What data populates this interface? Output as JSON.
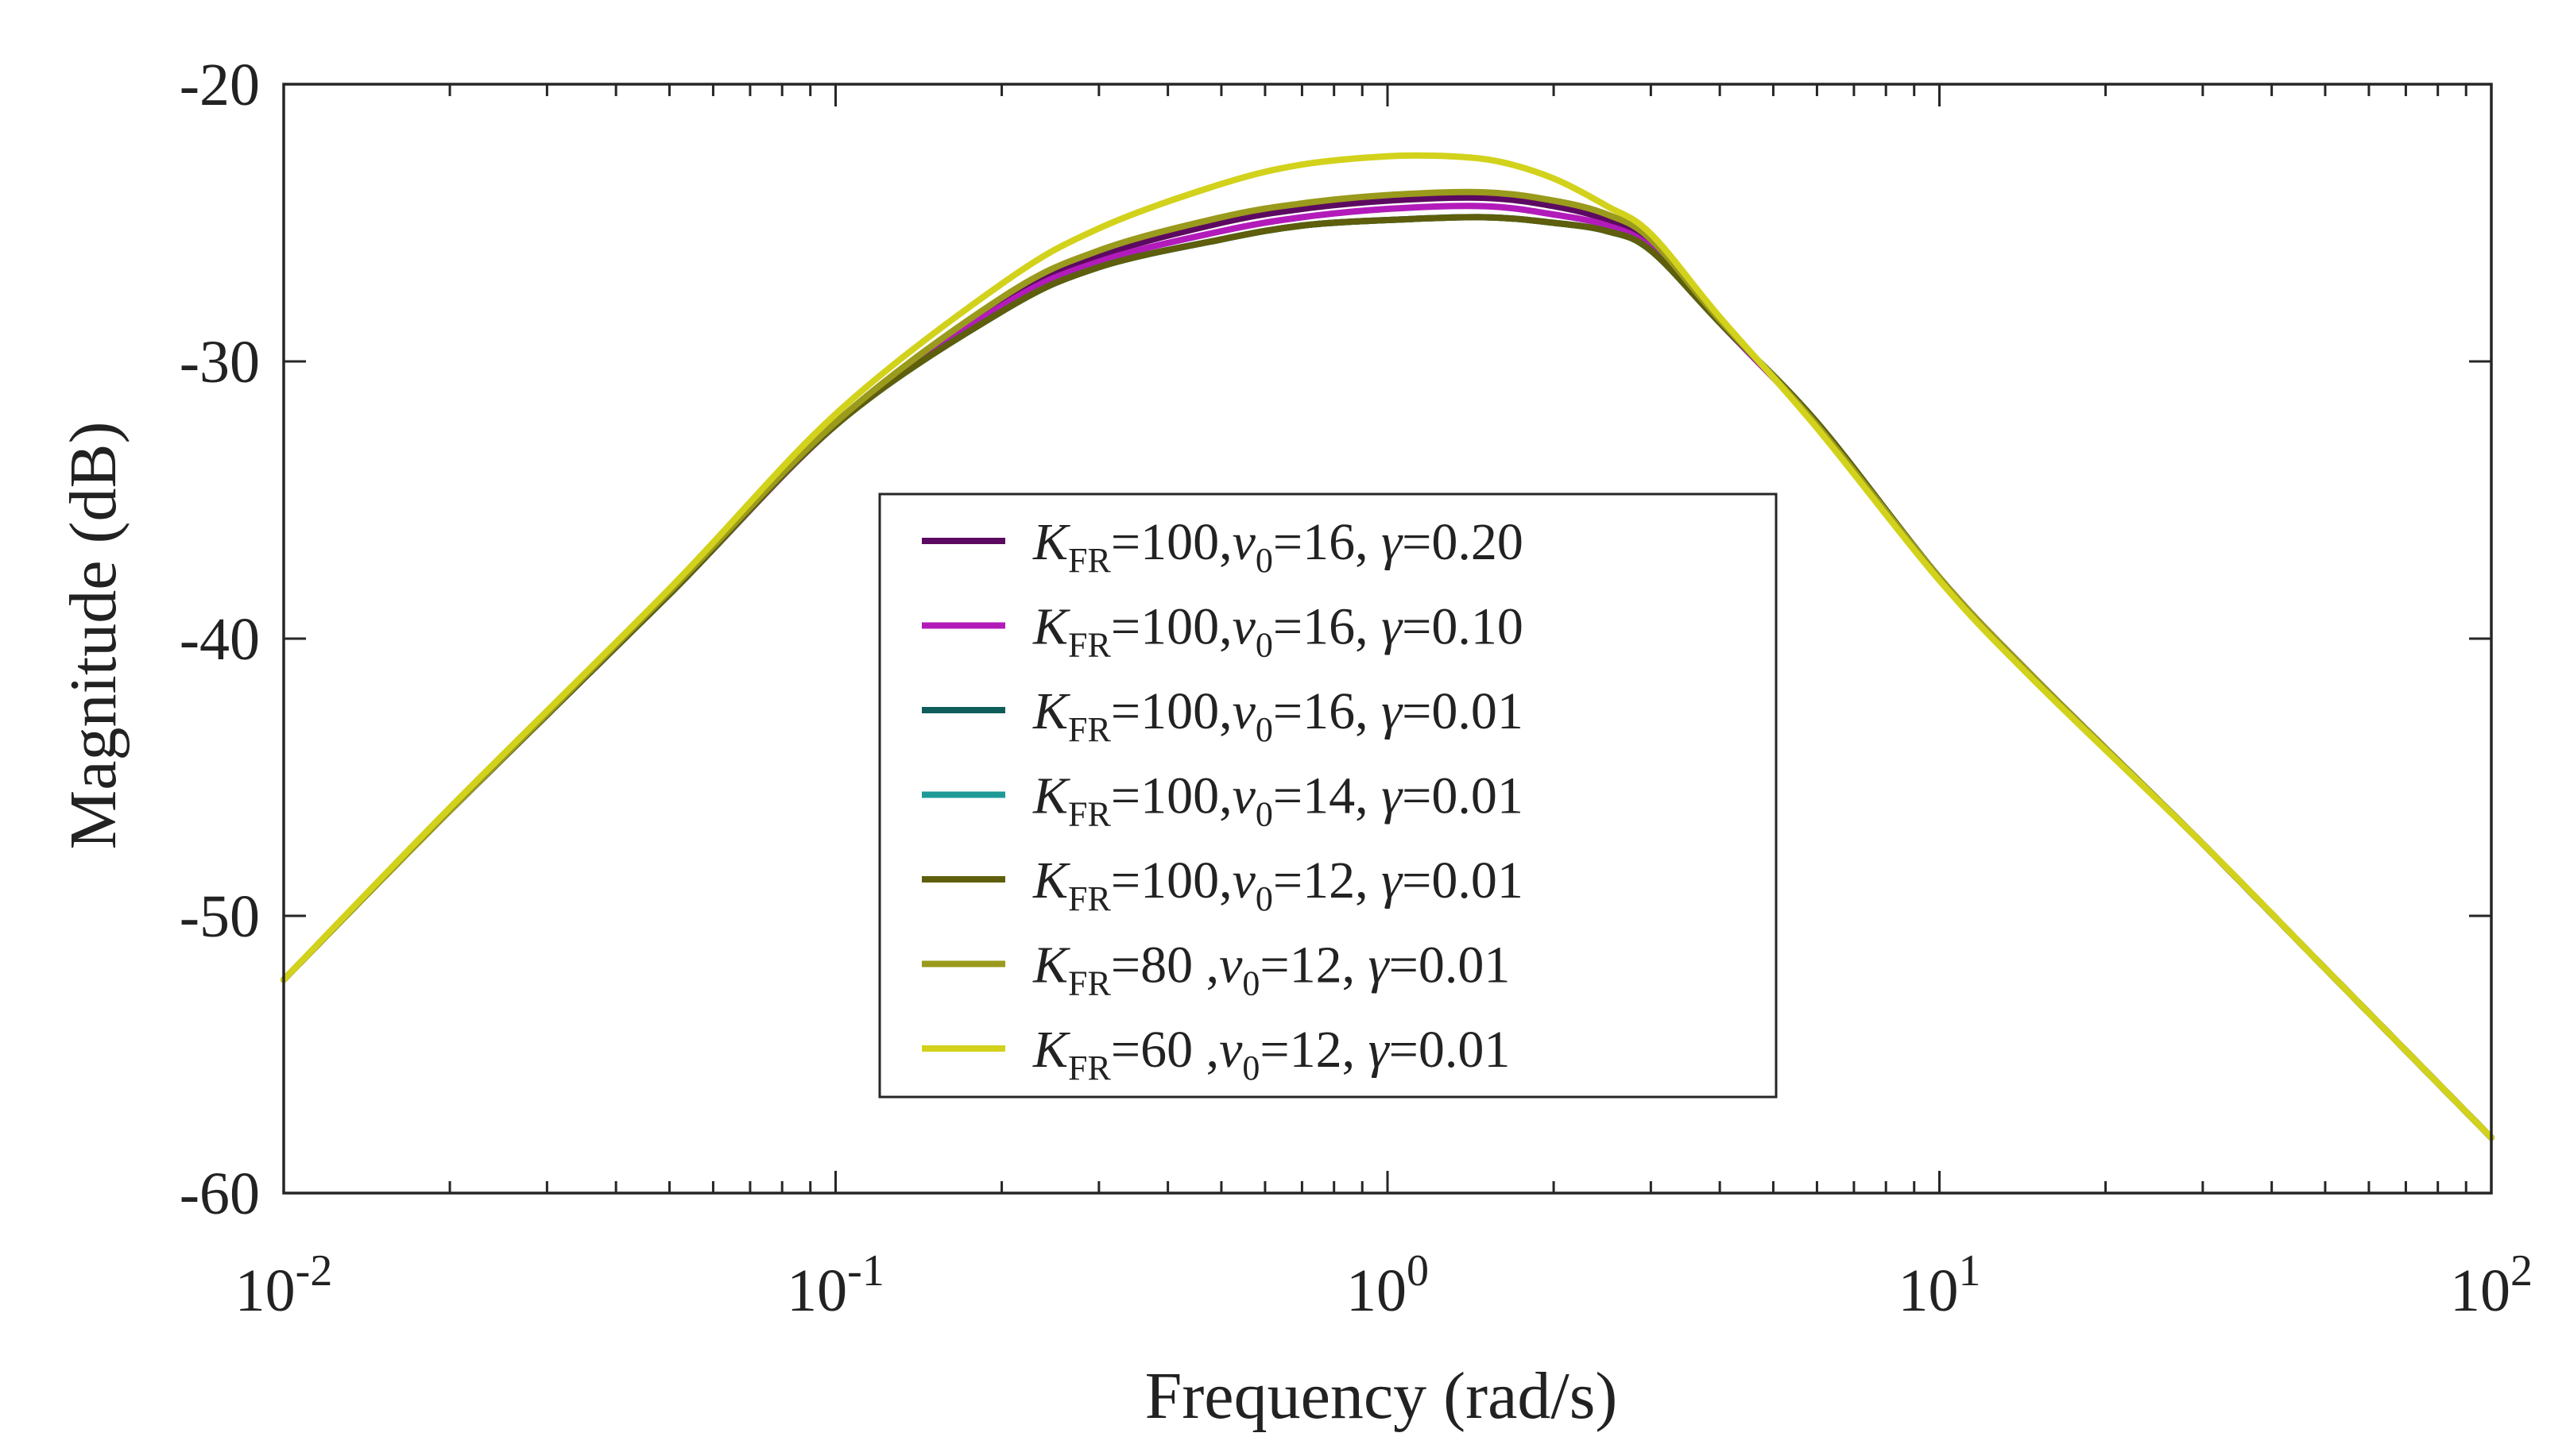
{
  "chart_data": {
    "type": "line",
    "title": "",
    "xlabel": "Frequency (rad/s)",
    "ylabel": "Magnitude (dB)",
    "xscale": "log",
    "xlim": [
      0.01,
      100
    ],
    "ylim": [
      -60,
      -20
    ],
    "yticks": [
      -20,
      -30,
      -40,
      -50,
      -60
    ],
    "ytick_labels": [
      "-20",
      "-30",
      "-40",
      "-50",
      "-60"
    ],
    "xticks": [
      0.01,
      0.1,
      1,
      10,
      100
    ],
    "xtick_labels": [
      {
        "base": "10",
        "exp": "-2"
      },
      {
        "base": "10",
        "exp": "-1"
      },
      {
        "base": "10",
        "exp": "0"
      },
      {
        "base": "10",
        "exp": "1"
      },
      {
        "base": "10",
        "exp": "2"
      }
    ],
    "grid": false,
    "legend_position": "center",
    "series": [
      {
        "name": "K_FR=100,v0=16, γ=0.20",
        "color": "#5c0a61",
        "legend": {
          "K": "K",
          "K_sub": "FR",
          "K_val": "=100,",
          "v": "v",
          "v_sub": "0",
          "v_val": "=16, ",
          "g": "γ",
          "g_val": "=0.20"
        },
        "points": [
          [
            0.01,
            -52.3
          ],
          [
            0.02,
            -46.2
          ],
          [
            0.05,
            -38.4
          ],
          [
            0.1,
            -32.3
          ],
          [
            0.2,
            -27.9
          ],
          [
            0.3,
            -26.2
          ],
          [
            0.5,
            -25.0
          ],
          [
            0.7,
            -24.5
          ],
          [
            1.0,
            -24.2
          ],
          [
            1.5,
            -24.1
          ],
          [
            2.0,
            -24.4
          ],
          [
            2.5,
            -24.9
          ],
          [
            3.0,
            -25.8
          ],
          [
            4.0,
            -28.6
          ],
          [
            6.0,
            -32.3
          ],
          [
            10.0,
            -37.8
          ],
          [
            15.0,
            -41.5
          ],
          [
            30.0,
            -47.4
          ],
          [
            50.0,
            -51.9
          ],
          [
            100.0,
            -58.0
          ]
        ]
      },
      {
        "name": "K_FR=100,v0=16, γ=0.10",
        "color": "#b21bba",
        "legend": {
          "K": "K",
          "K_sub": "FR",
          "K_val": "=100,",
          "v": "v",
          "v_sub": "0",
          "v_val": "=16, ",
          "g": "γ",
          "g_val": "=0.10"
        },
        "points": [
          [
            0.01,
            -52.3
          ],
          [
            0.02,
            -46.2
          ],
          [
            0.05,
            -38.4
          ],
          [
            0.1,
            -32.3
          ],
          [
            0.2,
            -28.0
          ],
          [
            0.3,
            -26.4
          ],
          [
            0.5,
            -25.3
          ],
          [
            0.7,
            -24.8
          ],
          [
            1.0,
            -24.5
          ],
          [
            1.5,
            -24.4
          ],
          [
            2.0,
            -24.7
          ],
          [
            2.5,
            -25.1
          ],
          [
            3.0,
            -25.9
          ],
          [
            4.0,
            -28.6
          ],
          [
            6.0,
            -32.3
          ],
          [
            10.0,
            -37.8
          ],
          [
            15.0,
            -41.5
          ],
          [
            30.0,
            -47.4
          ],
          [
            50.0,
            -51.9
          ],
          [
            100.0,
            -58.0
          ]
        ]
      },
      {
        "name": "K_FR=100,v0=16, γ=0.01",
        "color": "#0f5d5a",
        "legend": {
          "K": "K",
          "K_sub": "FR",
          "K_val": "=100,",
          "v": "v",
          "v_sub": "0",
          "v_val": "=16, ",
          "g": "γ",
          "g_val": "=0.01"
        },
        "points": [
          [
            0.01,
            -52.3
          ],
          [
            0.02,
            -46.2
          ],
          [
            0.05,
            -38.4
          ],
          [
            0.1,
            -32.3
          ],
          [
            0.2,
            -28.2
          ],
          [
            0.3,
            -26.6
          ],
          [
            0.5,
            -25.6
          ],
          [
            0.7,
            -25.1
          ],
          [
            1.0,
            -24.9
          ],
          [
            1.5,
            -24.8
          ],
          [
            2.0,
            -25.0
          ],
          [
            2.5,
            -25.3
          ],
          [
            3.0,
            -26.0
          ],
          [
            4.0,
            -28.6
          ],
          [
            6.0,
            -32.2
          ],
          [
            10.0,
            -37.8
          ],
          [
            15.0,
            -41.5
          ],
          [
            30.0,
            -47.4
          ],
          [
            50.0,
            -51.9
          ],
          [
            100.0,
            -58.0
          ]
        ]
      },
      {
        "name": "K_FR=100,v0=14, γ=0.01",
        "color": "#1d9a98",
        "legend": {
          "K": "K",
          "K_sub": "FR",
          "K_val": "=100,",
          "v": "v",
          "v_sub": "0",
          "v_val": "=14, ",
          "g": "γ",
          "g_val": "=0.01"
        },
        "points": [
          [
            0.01,
            -52.3
          ],
          [
            0.02,
            -46.2
          ],
          [
            0.05,
            -38.4
          ],
          [
            0.1,
            -32.3
          ],
          [
            0.2,
            -28.2
          ],
          [
            0.3,
            -26.6
          ],
          [
            0.5,
            -25.6
          ],
          [
            0.7,
            -25.1
          ],
          [
            1.0,
            -24.9
          ],
          [
            1.5,
            -24.8
          ],
          [
            2.0,
            -25.0
          ],
          [
            2.5,
            -25.3
          ],
          [
            3.0,
            -26.0
          ],
          [
            4.0,
            -28.6
          ],
          [
            6.0,
            -32.2
          ],
          [
            10.0,
            -37.8
          ],
          [
            15.0,
            -41.5
          ],
          [
            30.0,
            -47.4
          ],
          [
            50.0,
            -51.9
          ],
          [
            100.0,
            -58.0
          ]
        ]
      },
      {
        "name": "K_FR=100,v0=12, γ=0.01",
        "color": "#5e5e0c",
        "legend": {
          "K": "K",
          "K_sub": "FR",
          "K_val": "=100,",
          "v": "v",
          "v_sub": "0",
          "v_val": "=12, ",
          "g": "γ",
          "g_val": "=0.01"
        },
        "points": [
          [
            0.01,
            -52.3
          ],
          [
            0.02,
            -46.2
          ],
          [
            0.05,
            -38.4
          ],
          [
            0.1,
            -32.3
          ],
          [
            0.2,
            -28.2
          ],
          [
            0.3,
            -26.6
          ],
          [
            0.5,
            -25.6
          ],
          [
            0.7,
            -25.1
          ],
          [
            1.0,
            -24.9
          ],
          [
            1.5,
            -24.8
          ],
          [
            2.0,
            -25.0
          ],
          [
            2.5,
            -25.3
          ],
          [
            3.0,
            -26.0
          ],
          [
            4.0,
            -28.6
          ],
          [
            6.0,
            -32.2
          ],
          [
            10.0,
            -37.8
          ],
          [
            15.0,
            -41.5
          ],
          [
            30.0,
            -47.4
          ],
          [
            50.0,
            -51.9
          ],
          [
            100.0,
            -58.0
          ]
        ]
      },
      {
        "name": "K_FR=80 ,v0=12, γ=0.01",
        "color": "#9a9a1c",
        "legend": {
          "K": "K",
          "K_sub": "FR",
          "K_val": "=80  ,",
          "v": "v",
          "v_sub": "0",
          "v_val": "=12, ",
          "g": "γ",
          "g_val": "=0.01"
        },
        "points": [
          [
            0.01,
            -52.3
          ],
          [
            0.02,
            -46.2
          ],
          [
            0.05,
            -38.3
          ],
          [
            0.1,
            -32.2
          ],
          [
            0.2,
            -27.7
          ],
          [
            0.3,
            -26.0
          ],
          [
            0.5,
            -24.8
          ],
          [
            0.7,
            -24.3
          ],
          [
            1.0,
            -24.0
          ],
          [
            1.5,
            -23.9
          ],
          [
            2.0,
            -24.2
          ],
          [
            2.5,
            -24.7
          ],
          [
            3.0,
            -25.6
          ],
          [
            4.0,
            -28.5
          ],
          [
            6.0,
            -32.3
          ],
          [
            10.0,
            -37.8
          ],
          [
            15.0,
            -41.5
          ],
          [
            30.0,
            -47.4
          ],
          [
            50.0,
            -51.9
          ],
          [
            100.0,
            -58.0
          ]
        ]
      },
      {
        "name": "K_FR=60 ,v0=12, γ=0.01",
        "color": "#d2d21c",
        "legend": {
          "K": "K",
          "K_sub": "FR",
          "K_val": "=60  ,",
          "v": "v",
          "v_sub": "0",
          "v_val": "=12, ",
          "g": "γ",
          "g_val": "=0.01"
        },
        "points": [
          [
            0.01,
            -52.3
          ],
          [
            0.02,
            -46.1
          ],
          [
            0.05,
            -38.2
          ],
          [
            0.1,
            -31.9
          ],
          [
            0.2,
            -27.2
          ],
          [
            0.3,
            -25.2
          ],
          [
            0.5,
            -23.6
          ],
          [
            0.7,
            -22.9
          ],
          [
            1.0,
            -22.6
          ],
          [
            1.3,
            -22.6
          ],
          [
            1.6,
            -22.8
          ],
          [
            2.0,
            -23.4
          ],
          [
            2.5,
            -24.4
          ],
          [
            3.0,
            -25.4
          ],
          [
            4.0,
            -28.4
          ],
          [
            6.0,
            -32.4
          ],
          [
            10.0,
            -37.9
          ],
          [
            15.0,
            -41.6
          ],
          [
            30.0,
            -47.4
          ],
          [
            50.0,
            -51.9
          ],
          [
            100.0,
            -58.0
          ]
        ]
      }
    ]
  }
}
